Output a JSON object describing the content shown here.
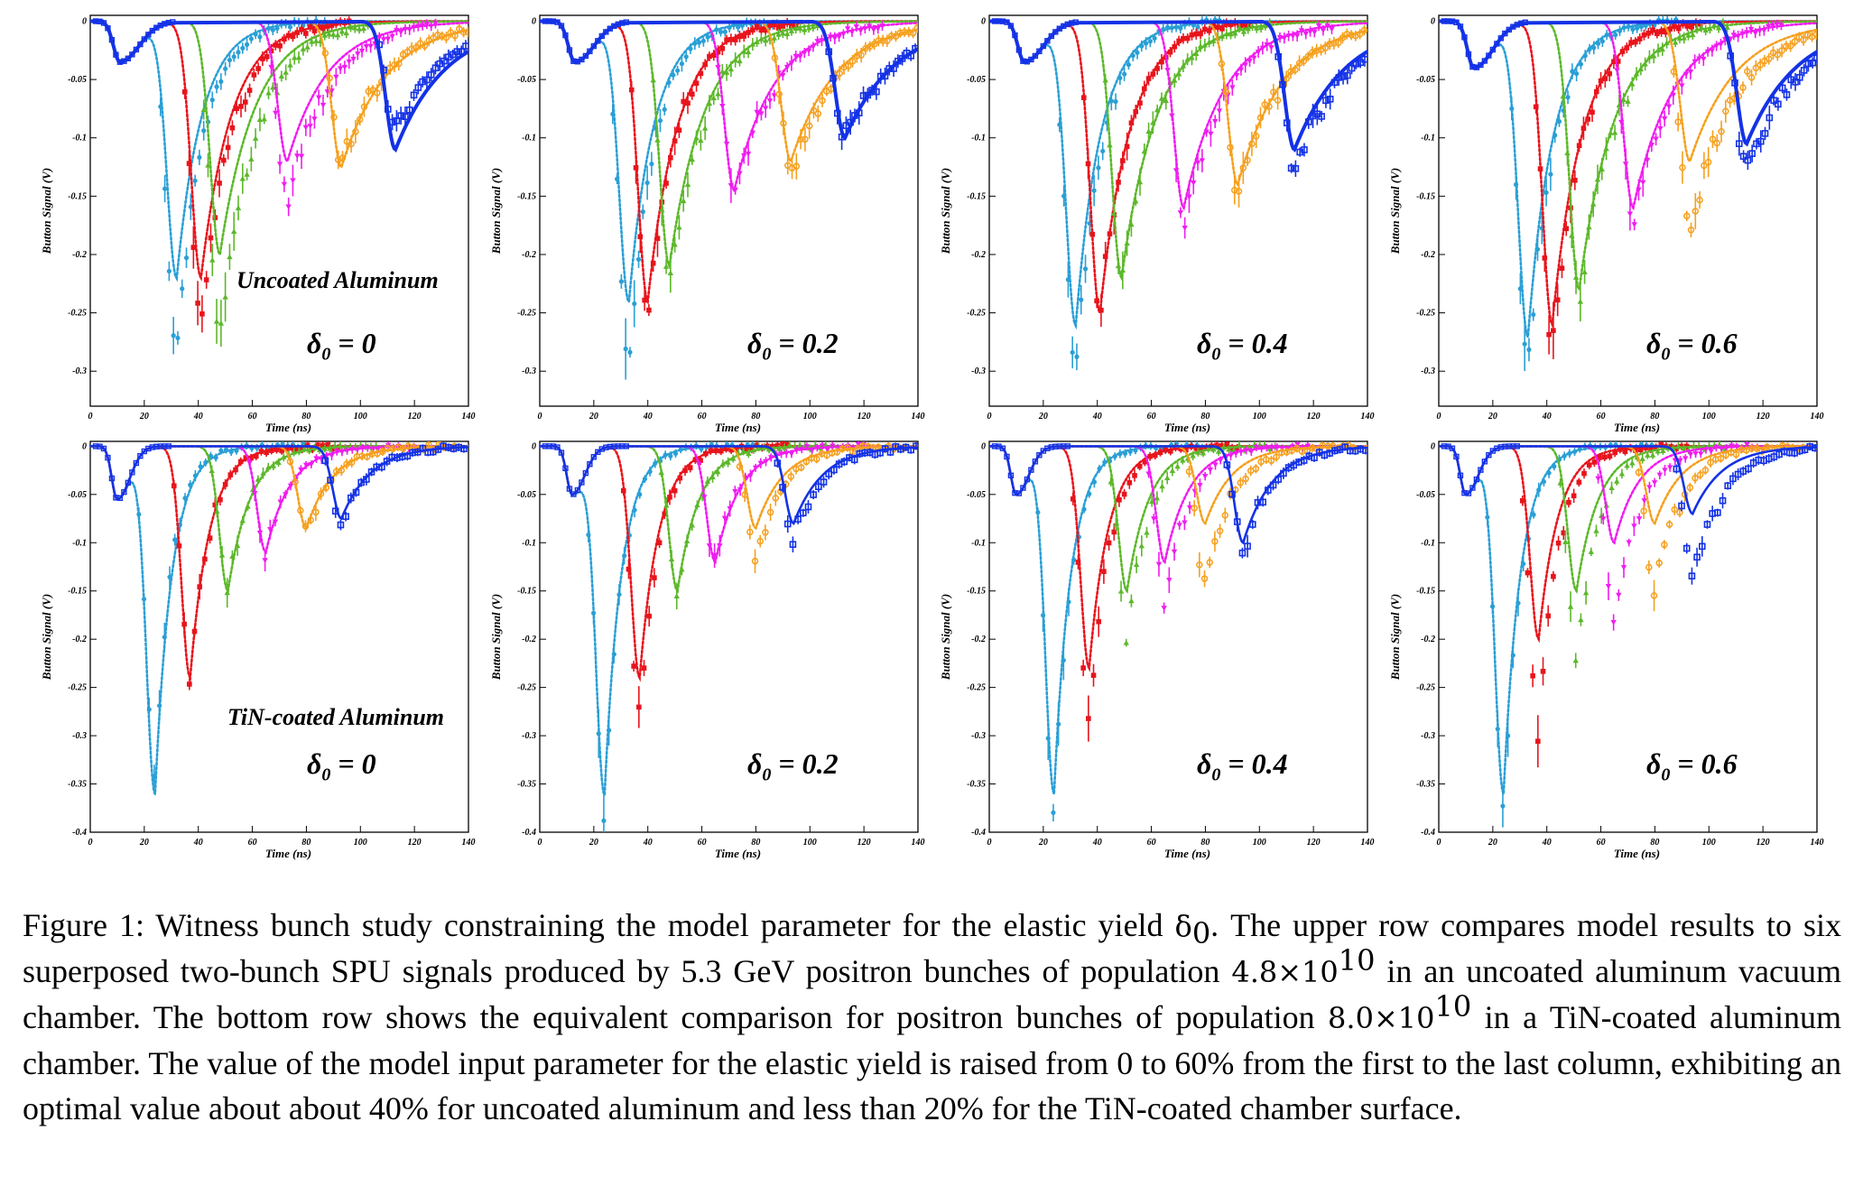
{
  "figure": {
    "row_labels": [
      "Uncoated Aluminum",
      "TiN-coated Aluminum"
    ],
    "delta_prefix": "δ",
    "delta_sub": "0",
    "delta_values": [
      "0",
      "0.2",
      "0.4",
      "0.6"
    ],
    "xlabel": "Time (ns)",
    "ylabel": "Button Signal (V)",
    "series_colors": [
      "#2a9fd6",
      "#e8141c",
      "#5cb82a",
      "#f01cf0",
      "#f5a01e",
      "#1432e6"
    ]
  },
  "chart_data": [
    {
      "type": "scatter",
      "row": "Uncoated Aluminum",
      "delta": "0",
      "xlim": [
        0,
        140
      ],
      "ylim": [
        -0.33,
        0.005
      ],
      "xticks": [
        0,
        20,
        40,
        60,
        80,
        100,
        120,
        140
      ],
      "yticks": [
        0,
        -0.05,
        -0.1,
        -0.15,
        -0.2,
        -0.25,
        -0.3
      ],
      "first_bunch": {
        "time": 11,
        "depth": -0.035
      },
      "series": [
        {
          "witness_time": 32,
          "data_min": -0.29,
          "model_min": -0.22
        },
        {
          "witness_time": 41,
          "data_min": -0.26,
          "model_min": -0.22
        },
        {
          "witness_time": 48,
          "data_min": -0.27,
          "model_min": -0.2
        },
        {
          "witness_time": 73,
          "data_min": -0.155,
          "model_min": -0.12
        },
        {
          "witness_time": 93,
          "data_min": -0.12,
          "model_min": -0.125
        },
        {
          "witness_time": 113,
          "data_min": -0.09,
          "model_min": -0.11
        }
      ]
    },
    {
      "type": "scatter",
      "row": "Uncoated Aluminum",
      "delta": "0.2",
      "xlim": [
        0,
        140
      ],
      "ylim": [
        -0.33,
        0.005
      ],
      "xticks": [
        0,
        20,
        40,
        60,
        80,
        100,
        120,
        140
      ],
      "yticks": [
        0,
        -0.05,
        -0.1,
        -0.15,
        -0.2,
        -0.25,
        -0.3
      ],
      "first_bunch": {
        "time": 13,
        "depth": -0.035
      },
      "series": [
        {
          "witness_time": 33,
          "data_min": -0.29,
          "model_min": -0.24
        },
        {
          "witness_time": 40,
          "data_min": -0.25,
          "model_min": -0.24
        },
        {
          "witness_time": 48,
          "data_min": -0.23,
          "model_min": -0.21
        },
        {
          "witness_time": 72,
          "data_min": -0.15,
          "model_min": -0.145
        },
        {
          "witness_time": 93,
          "data_min": -0.13,
          "model_min": -0.12
        },
        {
          "witness_time": 113,
          "data_min": -0.1,
          "model_min": -0.1
        }
      ]
    },
    {
      "type": "scatter",
      "row": "Uncoated Aluminum",
      "delta": "0.4",
      "xlim": [
        0,
        140
      ],
      "ylim": [
        -0.33,
        0.005
      ],
      "xticks": [
        0,
        20,
        40,
        60,
        80,
        100,
        120,
        140
      ],
      "yticks": [
        0,
        -0.05,
        -0.1,
        -0.15,
        -0.2,
        -0.25,
        -0.3
      ],
      "first_bunch": {
        "time": 13,
        "depth": -0.035
      },
      "series": [
        {
          "witness_time": 32,
          "data_min": -0.3,
          "model_min": -0.26
        },
        {
          "witness_time": 41,
          "data_min": -0.25,
          "model_min": -0.25
        },
        {
          "witness_time": 49,
          "data_min": -0.22,
          "model_min": -0.22
        },
        {
          "witness_time": 72,
          "data_min": -0.175,
          "model_min": -0.16
        },
        {
          "witness_time": 92,
          "data_min": -0.145,
          "model_min": -0.14
        },
        {
          "witness_time": 113,
          "data_min": -0.125,
          "model_min": -0.11
        }
      ]
    },
    {
      "type": "scatter",
      "row": "Uncoated Aluminum",
      "delta": "0.6",
      "xlim": [
        0,
        140
      ],
      "ylim": [
        -0.33,
        0.005
      ],
      "xticks": [
        0,
        20,
        40,
        60,
        80,
        100,
        120,
        140
      ],
      "yticks": [
        0,
        -0.05,
        -0.1,
        -0.15,
        -0.2,
        -0.25,
        -0.3
      ],
      "first_bunch": {
        "time": 13,
        "depth": -0.04
      },
      "series": [
        {
          "witness_time": 33,
          "data_min": -0.3,
          "model_min": -0.27
        },
        {
          "witness_time": 42,
          "data_min": -0.28,
          "model_min": -0.26
        },
        {
          "witness_time": 52,
          "data_min": -0.24,
          "model_min": -0.23
        },
        {
          "witness_time": 72,
          "data_min": -0.17,
          "model_min": -0.16
        },
        {
          "witness_time": 93,
          "data_min": -0.18,
          "model_min": -0.12
        },
        {
          "witness_time": 114,
          "data_min": -0.13,
          "model_min": -0.105
        }
      ]
    },
    {
      "type": "scatter",
      "row": "TiN-coated Aluminum",
      "delta": "0",
      "xlim": [
        0,
        140
      ],
      "ylim": [
        -0.4,
        0.005
      ],
      "xticks": [
        0,
        20,
        40,
        60,
        80,
        100,
        120,
        140
      ],
      "yticks": [
        0,
        -0.05,
        -0.1,
        -0.15,
        -0.2,
        -0.25,
        -0.3,
        -0.35,
        -0.4
      ],
      "first_bunch": {
        "time": 10,
        "depth": -0.055
      },
      "series": [
        {
          "witness_time": 24,
          "data_min": -0.34,
          "model_min": -0.36
        },
        {
          "witness_time": 37,
          "data_min": -0.24,
          "model_min": -0.24
        },
        {
          "witness_time": 51,
          "data_min": -0.145,
          "model_min": -0.15
        },
        {
          "witness_time": 65,
          "data_min": -0.11,
          "model_min": -0.11
        },
        {
          "witness_time": 80,
          "data_min": -0.085,
          "model_min": -0.085
        },
        {
          "witness_time": 93,
          "data_min": -0.075,
          "model_min": -0.075
        }
      ]
    },
    {
      "type": "scatter",
      "row": "TiN-coated Aluminum",
      "delta": "0.2",
      "xlim": [
        0,
        140
      ],
      "ylim": [
        -0.4,
        0.005
      ],
      "xticks": [
        0,
        20,
        40,
        60,
        80,
        100,
        120,
        140
      ],
      "yticks": [
        0,
        -0.05,
        -0.1,
        -0.15,
        -0.2,
        -0.25,
        -0.3,
        -0.35,
        -0.4
      ],
      "first_bunch": {
        "time": 12,
        "depth": -0.05
      },
      "series": [
        {
          "witness_time": 24,
          "data_min": -0.38,
          "model_min": -0.36
        },
        {
          "witness_time": 37,
          "data_min": -0.28,
          "model_min": -0.24
        },
        {
          "witness_time": 51,
          "data_min": -0.15,
          "model_min": -0.15
        },
        {
          "witness_time": 65,
          "data_min": -0.12,
          "model_min": -0.12
        },
        {
          "witness_time": 80,
          "data_min": -0.115,
          "model_min": -0.085
        },
        {
          "witness_time": 94,
          "data_min": -0.095,
          "model_min": -0.08
        }
      ]
    },
    {
      "type": "scatter",
      "row": "TiN-coated Aluminum",
      "delta": "0.4",
      "xlim": [
        0,
        140
      ],
      "ylim": [
        -0.4,
        0.005
      ],
      "xticks": [
        0,
        20,
        40,
        60,
        80,
        100,
        120,
        140
      ],
      "yticks": [
        0,
        -0.05,
        -0.1,
        -0.15,
        -0.2,
        -0.25,
        -0.3,
        -0.35,
        -0.4
      ],
      "first_bunch": {
        "time": 10,
        "depth": -0.05
      },
      "series": [
        {
          "witness_time": 24,
          "data_min": -0.38,
          "model_min": -0.36
        },
        {
          "witness_time": 37,
          "data_min": -0.29,
          "model_min": -0.23
        },
        {
          "witness_time": 51,
          "data_min": -0.2,
          "model_min": -0.15
        },
        {
          "witness_time": 65,
          "data_min": -0.16,
          "model_min": -0.12
        },
        {
          "witness_time": 80,
          "data_min": -0.145,
          "model_min": -0.08
        },
        {
          "witness_time": 94,
          "data_min": -0.11,
          "model_min": -0.1
        }
      ]
    },
    {
      "type": "scatter",
      "row": "TiN-coated Aluminum",
      "delta": "0.6",
      "xlim": [
        0,
        140
      ],
      "ylim": [
        -0.4,
        0.005
      ],
      "xticks": [
        0,
        20,
        40,
        60,
        80,
        100,
        120,
        140
      ],
      "yticks": [
        0,
        -0.05,
        -0.1,
        -0.15,
        -0.2,
        -0.25,
        -0.3,
        -0.35,
        -0.4
      ],
      "first_bunch": {
        "time": 10,
        "depth": -0.05
      },
      "series": [
        {
          "witness_time": 24,
          "data_min": -0.38,
          "model_min": -0.36
        },
        {
          "witness_time": 37,
          "data_min": -0.3,
          "model_min": -0.2
        },
        {
          "witness_time": 51,
          "data_min": -0.22,
          "model_min": -0.15
        },
        {
          "witness_time": 65,
          "data_min": -0.19,
          "model_min": -0.1
        },
        {
          "witness_time": 80,
          "data_min": -0.15,
          "model_min": -0.08
        },
        {
          "witness_time": 94,
          "data_min": -0.14,
          "model_min": -0.07
        }
      ]
    }
  ],
  "caption": {
    "prefix": "Figure 1:  Witness bunch study constraining the model parameter for the elastic yield ",
    "delta_symbol": "δ",
    "delta_sub": "0",
    "part1": ".  The upper row compares model results to six superposed two-bunch SPU signals produced by 5.3 GeV positron bunches of population ",
    "pop1_mantissa": "4.8×10",
    "pop1_exp": "10",
    "part2": " in an uncoated aluminum vacuum chamber.  The bottom row shows the equivalent comparison for positron bunches of population ",
    "pop2_mantissa": "8.0×10",
    "pop2_exp": "10",
    "part3": "  in a TiN-coated aluminum chamber.  The value of the model input parameter for the elastic yield is raised from 0 to 60% from the first to the last column, exhibiting an optimal value about about 40% for uncoated aluminum and less than 20% for the TiN-coated chamber surface."
  }
}
